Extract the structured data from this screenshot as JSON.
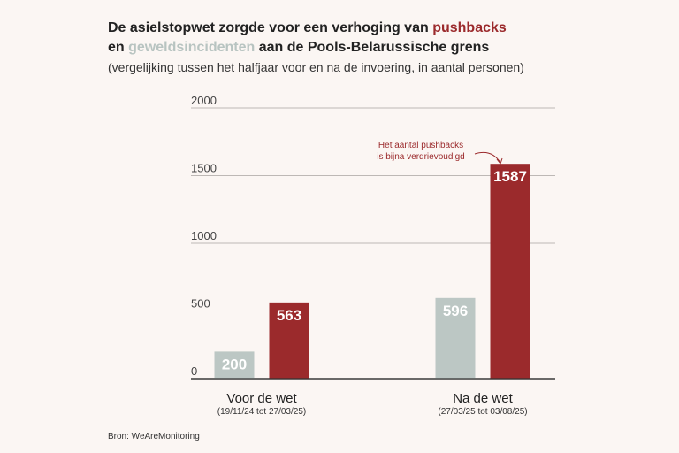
{
  "header": {
    "title_part1": "De asielstopwet zorgde voor een verhoging van ",
    "title_highlight1": "pushbacks",
    "title_part2": "en ",
    "title_highlight2": "geweldsincidenten",
    "title_part3": " aan de Pools-Belarussische grens",
    "subtitle": "(vergelijking tussen het halfjaar voor en na de invoering, in aantal personen)"
  },
  "colors": {
    "pushbacks": "#9b2a2c",
    "geweld": "#bcc7c4",
    "grid": "#bdb8b5",
    "background": "#fbf6f3"
  },
  "chart_data": {
    "type": "bar",
    "title": "De asielstopwet zorgde voor een verhoging van pushbacks en geweldsincidenten aan de Pools-Belarussische grens",
    "categories": [
      "Voor de wet",
      "Na de wet"
    ],
    "category_sublabels": [
      "(19/11/24 tot 27/03/25)",
      "(27/03/25 tot 03/08/25)"
    ],
    "series": [
      {
        "name": "geweldsincidenten",
        "values": [
          200,
          596
        ]
      },
      {
        "name": "pushbacks",
        "values": [
          563,
          1587
        ]
      }
    ],
    "yticks": [
      "0",
      "500",
      "1000",
      "1500",
      "2000"
    ],
    "ylim": [
      0,
      2000
    ],
    "annotation": [
      "Het aantal pushbacks",
      "is bijna verdrievoudigd"
    ]
  },
  "source": "Bron: WeAreMonitoring"
}
